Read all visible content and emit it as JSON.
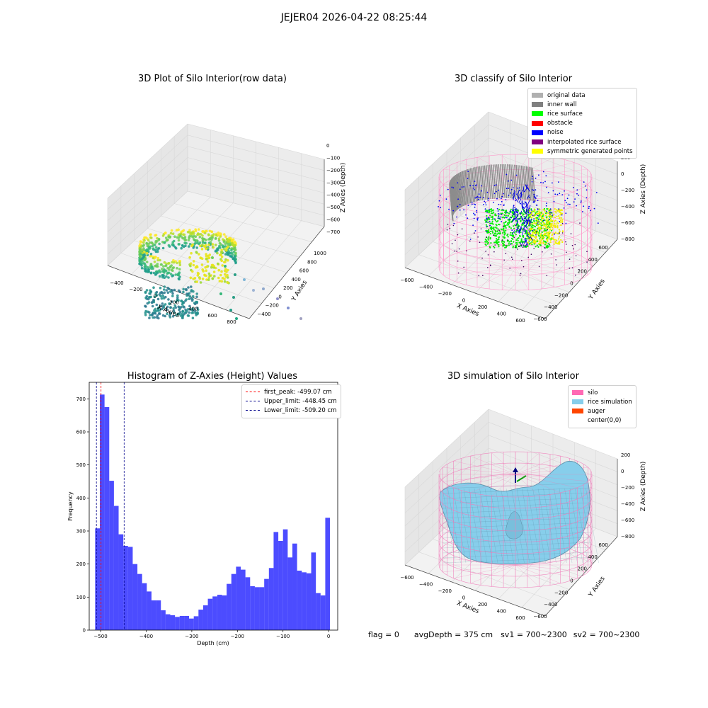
{
  "figure": {
    "suptitle": "JEJER04 2026-04-22 08:25:44",
    "status": {
      "flag": "flag = 0",
      "avg_depth": "avgDepth = 375 cm",
      "sv1": "sv1 = 700~2300",
      "sv2": "sv2 = 700~2300"
    }
  },
  "plot_raw": {
    "title": "3D Plot of Silo Interior(row data)",
    "xlabel": "X Axies",
    "ylabel": "Y Axies",
    "zlabel": "Z Axies (Depth)",
    "xticks": [
      "−400",
      "−200",
      "0",
      "200",
      "400",
      "600",
      "800"
    ],
    "yticks": [
      "−400",
      "−200",
      "0",
      "200",
      "400",
      "600",
      "800",
      "1000"
    ],
    "zticks": [
      "0",
      "−100",
      "−200",
      "−300",
      "−400",
      "−500",
      "−600",
      "−700"
    ]
  },
  "plot_classify": {
    "title": "3D classify of Silo Interior",
    "xlabel": "X Axies",
    "ylabel": "Y Axies",
    "zlabel": "Z Axies (Depth)",
    "xticks": [
      "−600",
      "−400",
      "−200",
      "0",
      "200",
      "400",
      "600"
    ],
    "yticks": [
      "−600",
      "−400",
      "−200",
      "0",
      "200",
      "400",
      "600"
    ],
    "zticks": [
      "200",
      "0",
      "−200",
      "−400",
      "−600",
      "−800"
    ],
    "legend": [
      {
        "label": "original data",
        "color": "#b0b0b0"
      },
      {
        "label": "inner wall",
        "color": "#808080"
      },
      {
        "label": "rice surface",
        "color": "#00ff00"
      },
      {
        "label": "obstacle",
        "color": "#ff0000"
      },
      {
        "label": "noise",
        "color": "#0000ff"
      },
      {
        "label": "interpolated rice surface",
        "color": "#800080"
      },
      {
        "label": "symmetric generated points",
        "color": "#ffff00"
      }
    ]
  },
  "plot_sim": {
    "title": "3D simulation of Silo Interior",
    "xlabel": "X Axies",
    "ylabel": "Y Axies",
    "zlabel": "Z Axies (Depth)",
    "xticks": [
      "−600",
      "−400",
      "−200",
      "0",
      "200",
      "400",
      "600"
    ],
    "yticks": [
      "−600",
      "−400",
      "−200",
      "0",
      "200",
      "400",
      "600"
    ],
    "zticks": [
      "200",
      "0",
      "−200",
      "−400",
      "−600",
      "−800"
    ],
    "legend": [
      {
        "label": "silo",
        "color": "#ff69b4"
      },
      {
        "label": "rice simulation",
        "color": "#87ceeb"
      },
      {
        "label": "auger",
        "color": "#ff4500"
      },
      {
        "label": "center(0,0)",
        "color": "#ffffff"
      }
    ]
  },
  "chart_data": {
    "type": "bar",
    "title": "Histogram of Z-Axies (Height) Values",
    "xlabel": "Depth (cm)",
    "ylabel": "Frequency",
    "xlim": [
      -525,
      20
    ],
    "ylim": [
      0,
      750
    ],
    "xticks": [
      -500,
      -400,
      -300,
      -200,
      -100,
      0
    ],
    "xtick_labels": [
      "−500",
      "−400",
      "−300",
      "−200",
      "−100",
      "0"
    ],
    "yticks": [
      0,
      100,
      200,
      300,
      400,
      500,
      600,
      700
    ],
    "bin_start": -512,
    "bin_width": 10.3,
    "color": "#0000ff",
    "values": [
      308,
      713,
      675,
      452,
      376,
      290,
      255,
      252,
      200,
      170,
      142,
      117,
      90,
      90,
      60,
      48,
      45,
      40,
      43,
      43,
      35,
      42,
      62,
      75,
      95,
      102,
      107,
      105,
      140,
      170,
      192,
      183,
      160,
      133,
      130,
      130,
      155,
      188,
      297,
      270,
      305,
      220,
      262,
      180,
      175,
      172,
      235,
      112,
      105,
      340
    ],
    "lines": [
      {
        "label": "first_peak: -499.07 cm",
        "x": -499.07,
        "color": "#ff0000"
      },
      {
        "label": "Upper_limit: -448.45 cm",
        "x": -448.45,
        "color": "#00008b"
      },
      {
        "label": "Lower_limit: -509.20 cm",
        "x": -509.2,
        "color": "#00008b"
      }
    ]
  }
}
